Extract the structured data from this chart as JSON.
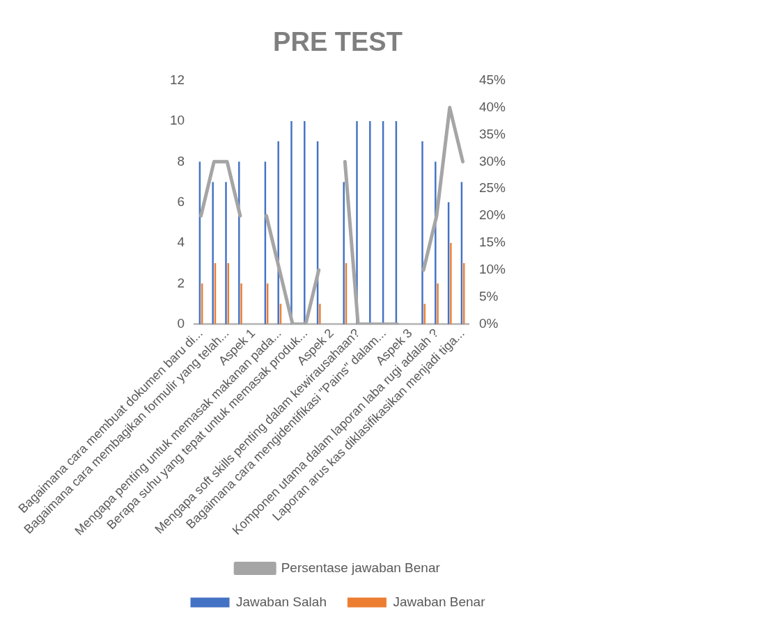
{
  "chart_data": {
    "type": "bar",
    "title": "PRE TEST",
    "categories": [
      "Bagaimana cara membuat dokumen baru di...",
      null,
      "Bagaimana cara membagikan formulir yang telah...",
      null,
      "Aspek 1",
      null,
      "Mengapa penting untuk memasak makanan pada...",
      null,
      "Berapa suhu yang tepat untuk memasak produk...",
      null,
      "Aspek 2",
      null,
      "Mengapa soft skills penting dalam kewirausahaan?",
      null,
      "Bagaimana cara mengidentifikasi \"Pains\" dalam...",
      null,
      "Aspek 3",
      null,
      "Komponen utama dalam laporan laba rugi adalah ?",
      null,
      "Laporan arus kas diklasifikasikan menjadi tiga..."
    ],
    "series": [
      {
        "name": "Jawaban Salah",
        "color": "#4472c4",
        "values": [
          8,
          7,
          7,
          8,
          null,
          8,
          9,
          10,
          10,
          9,
          null,
          7,
          10,
          10,
          10,
          10,
          null,
          9,
          8,
          6,
          7
        ]
      },
      {
        "name": "Jawaban Benar",
        "color": "#ed7d31",
        "values": [
          2,
          3,
          3,
          2,
          null,
          2,
          1,
          0,
          0,
          1,
          null,
          3,
          0,
          0,
          0,
          0,
          null,
          1,
          2,
          4,
          3
        ]
      },
      {
        "name": "Persentase jawaban Benar",
        "type": "line",
        "axis": "y2",
        "color": "#a5a5a5",
        "values": [
          20,
          30,
          30,
          20,
          null,
          20,
          10,
          0,
          0,
          10,
          null,
          30,
          0,
          0,
          0,
          0,
          null,
          10,
          20,
          40,
          30
        ]
      }
    ],
    "ylim": [
      0,
      12
    ],
    "yticks": [
      0,
      2,
      4,
      6,
      8,
      10,
      12
    ],
    "y2lim": [
      0,
      45
    ],
    "y2ticks": [
      {
        "value": 0,
        "label": "0%"
      },
      {
        "value": 5,
        "label": "5%"
      },
      {
        "value": 10,
        "label": "10%"
      },
      {
        "value": 15,
        "label": "15%"
      },
      {
        "value": 20,
        "label": "20%"
      },
      {
        "value": 25,
        "label": "25%"
      },
      {
        "value": 30,
        "label": "30%"
      },
      {
        "value": 35,
        "label": "35%"
      },
      {
        "value": 40,
        "label": "40%"
      },
      {
        "value": 45,
        "label": "45%"
      }
    ],
    "grid": false,
    "legend": "bottom"
  }
}
